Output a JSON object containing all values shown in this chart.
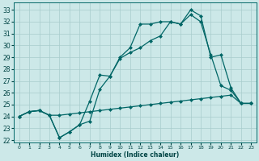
{
  "xlabel": "Humidex (Indice chaleur)",
  "background_color": "#cce8e8",
  "grid_color": "#a8cccc",
  "line_color": "#006666",
  "xlim": [
    -0.5,
    23.5
  ],
  "ylim": [
    21.8,
    33.6
  ],
  "xticks": [
    0,
    1,
    2,
    3,
    4,
    5,
    6,
    7,
    8,
    9,
    10,
    11,
    12,
    13,
    14,
    15,
    16,
    17,
    18,
    19,
    20,
    21,
    22,
    23
  ],
  "yticks": [
    22,
    23,
    24,
    25,
    26,
    27,
    28,
    29,
    30,
    31,
    32,
    33
  ],
  "line1_x": [
    0,
    1,
    2,
    3,
    4,
    5,
    6,
    7,
    8,
    9,
    10,
    11,
    12,
    13,
    14,
    15,
    16,
    17,
    18,
    19,
    20,
    21,
    22,
    23
  ],
  "line1_y": [
    24.0,
    24.4,
    24.5,
    24.1,
    24.1,
    24.2,
    24.3,
    24.4,
    24.5,
    24.6,
    24.7,
    24.8,
    24.9,
    25.0,
    25.1,
    25.2,
    25.3,
    25.4,
    25.5,
    25.6,
    25.7,
    25.8,
    25.1,
    25.1
  ],
  "line2_x": [
    0,
    1,
    2,
    3,
    4,
    5,
    6,
    7,
    8,
    9,
    10,
    11,
    12,
    13,
    14,
    15,
    16,
    17,
    18,
    19,
    20,
    21,
    22,
    23
  ],
  "line2_y": [
    24.0,
    24.4,
    24.5,
    24.1,
    22.2,
    22.7,
    23.3,
    25.3,
    27.5,
    27.4,
    29.0,
    29.8,
    31.8,
    31.8,
    32.0,
    32.0,
    31.8,
    33.0,
    32.5,
    29.0,
    29.2,
    26.4,
    25.1,
    25.1
  ],
  "line3_x": [
    0,
    1,
    2,
    3,
    4,
    5,
    6,
    7,
    8,
    9,
    10,
    11,
    12,
    13,
    14,
    15,
    16,
    17,
    18,
    19,
    20,
    21,
    22,
    23
  ],
  "line3_y": [
    24.0,
    24.4,
    24.5,
    24.1,
    22.2,
    22.7,
    23.3,
    23.6,
    26.3,
    27.4,
    28.9,
    29.4,
    29.8,
    30.4,
    30.8,
    32.0,
    31.8,
    32.6,
    32.0,
    29.2,
    26.6,
    26.2,
    25.1,
    25.1
  ]
}
